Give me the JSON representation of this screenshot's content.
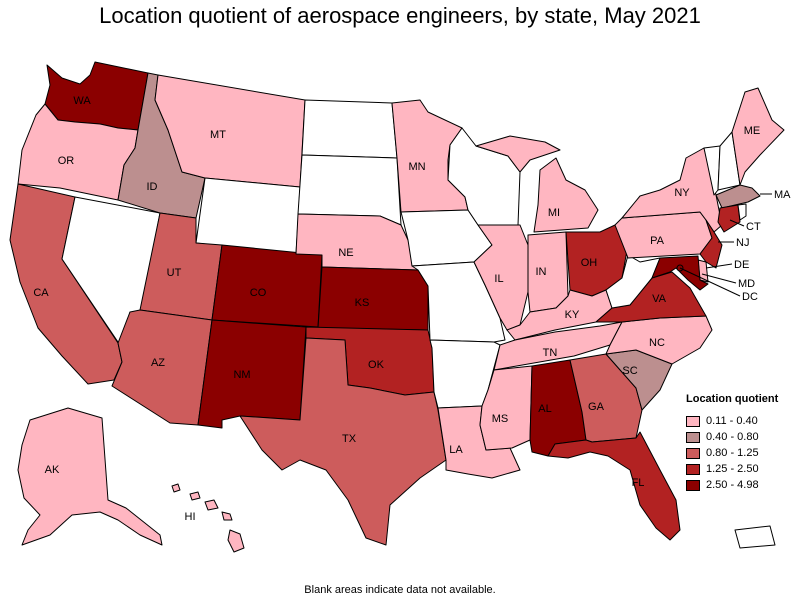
{
  "title": "Location quotient of aerospace engineers, by state, May 2021",
  "footnote": "Blank areas indicate data not available.",
  "legend": {
    "title": "Location quotient",
    "bins": [
      {
        "label": "0.11 - 0.40",
        "color": "#ffb6c1"
      },
      {
        "label": "0.40 - 0.80",
        "color": "#bc8f8f"
      },
      {
        "label": "0.80 - 1.25",
        "color": "#cd5c5c"
      },
      {
        "label": "1.25 - 2.50",
        "color": "#b22222"
      },
      {
        "label": "2.50 - 4.98",
        "color": "#8b0000"
      }
    ]
  },
  "no_data_color": "#ffffff",
  "states": [
    {
      "abbr": "WA",
      "bin": 4
    },
    {
      "abbr": "OR",
      "bin": 0
    },
    {
      "abbr": "CA",
      "bin": 2
    },
    {
      "abbr": "NV",
      "bin": null
    },
    {
      "abbr": "ID",
      "bin": 1
    },
    {
      "abbr": "MT",
      "bin": 0
    },
    {
      "abbr": "WY",
      "bin": null
    },
    {
      "abbr": "UT",
      "bin": 2
    },
    {
      "abbr": "AZ",
      "bin": 2
    },
    {
      "abbr": "CO",
      "bin": 4
    },
    {
      "abbr": "NM",
      "bin": 4
    },
    {
      "abbr": "ND",
      "bin": null
    },
    {
      "abbr": "SD",
      "bin": null
    },
    {
      "abbr": "NE",
      "bin": 0
    },
    {
      "abbr": "KS",
      "bin": 4
    },
    {
      "abbr": "OK",
      "bin": 3
    },
    {
      "abbr": "TX",
      "bin": 2
    },
    {
      "abbr": "MN",
      "bin": 0
    },
    {
      "abbr": "IA",
      "bin": null
    },
    {
      "abbr": "MO",
      "bin": null
    },
    {
      "abbr": "AR",
      "bin": null
    },
    {
      "abbr": "LA",
      "bin": 0
    },
    {
      "abbr": "WI",
      "bin": null
    },
    {
      "abbr": "IL",
      "bin": 0
    },
    {
      "abbr": "MI",
      "bin": 0
    },
    {
      "abbr": "IN",
      "bin": 0
    },
    {
      "abbr": "OH",
      "bin": 3
    },
    {
      "abbr": "KY",
      "bin": 0
    },
    {
      "abbr": "TN",
      "bin": 0
    },
    {
      "abbr": "MS",
      "bin": 0
    },
    {
      "abbr": "AL",
      "bin": 4
    },
    {
      "abbr": "GA",
      "bin": 2
    },
    {
      "abbr": "FL",
      "bin": 3
    },
    {
      "abbr": "SC",
      "bin": 1
    },
    {
      "abbr": "NC",
      "bin": 0
    },
    {
      "abbr": "VA",
      "bin": 3
    },
    {
      "abbr": "WV",
      "bin": null
    },
    {
      "abbr": "PA",
      "bin": 0
    },
    {
      "abbr": "NY",
      "bin": 0
    },
    {
      "abbr": "VT",
      "bin": null
    },
    {
      "abbr": "NH",
      "bin": null
    },
    {
      "abbr": "ME",
      "bin": 0
    },
    {
      "abbr": "MA",
      "bin": 1
    },
    {
      "abbr": "RI",
      "bin": null
    },
    {
      "abbr": "CT",
      "bin": 3
    },
    {
      "abbr": "NJ",
      "bin": 3
    },
    {
      "abbr": "DE",
      "bin": 0
    },
    {
      "abbr": "MD",
      "bin": 4
    },
    {
      "abbr": "DC",
      "bin": 4
    },
    {
      "abbr": "AK",
      "bin": 0
    },
    {
      "abbr": "HI",
      "bin": 0
    },
    {
      "abbr": "PR",
      "bin": null
    }
  ],
  "labels": {
    "WA": "WA",
    "OR": "OR",
    "CA": "CA",
    "ID": "ID",
    "MT": "MT",
    "UT": "UT",
    "AZ": "AZ",
    "CO": "CO",
    "NM": "NM",
    "NE": "NE",
    "KS": "KS",
    "OK": "OK",
    "TX": "TX",
    "MN": "MN",
    "LA": "LA",
    "IL": "IL",
    "MI": "MI",
    "IN": "IN",
    "OH": "OH",
    "KY": "KY",
    "TN": "TN",
    "MS": "MS",
    "AL": "AL",
    "GA": "GA",
    "FL": "FL",
    "SC": "SC",
    "NC": "NC",
    "VA": "VA",
    "PA": "PA",
    "NY": "NY",
    "ME": "ME",
    "MA": "MA",
    "CT": "CT",
    "NJ": "NJ",
    "DE": "DE",
    "MD": "MD",
    "DC": "DC",
    "AK": "AK",
    "HI": "HI"
  }
}
